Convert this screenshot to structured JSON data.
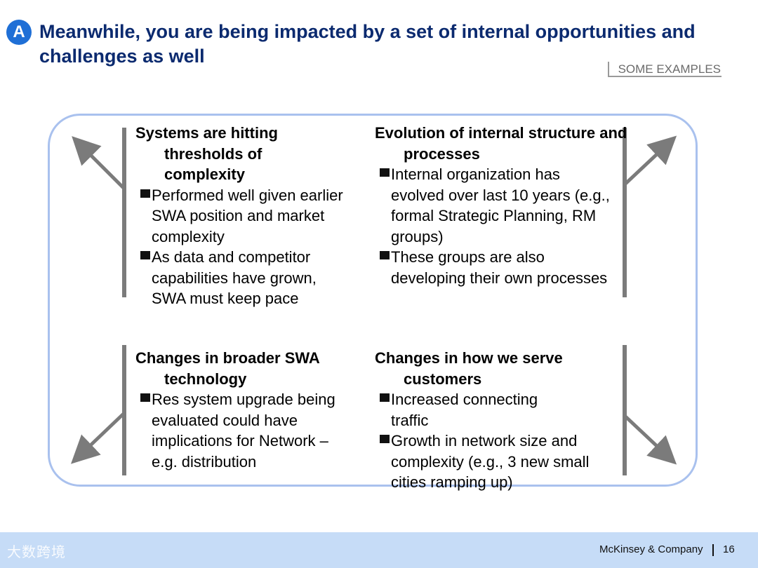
{
  "header": {
    "badge": "A",
    "title": "Meanwhile, you are being impacted by a set of internal opportunities and challenges as well",
    "tag": "SOME EXAMPLES"
  },
  "quadrants": {
    "top_left": {
      "title": "Systems are hitting thresholds of complexity",
      "bullets": [
        "Performed well given earlier SWA position and market complexity",
        "As data and competitor capabilities have grown, SWA must keep pace"
      ]
    },
    "top_right": {
      "title": "Evolution of internal structure and processes",
      "bullets": [
        "Internal organization has evolved over last 10 years (e.g., formal Strategic Planning, RM groups)",
        "These groups are also developing their own processes"
      ]
    },
    "bottom_left": {
      "title": "Changes in broader SWA technology",
      "bullets": [
        "Res system upgrade being evaluated could have implications for Network – e.g. distribution"
      ]
    },
    "bottom_right": {
      "title": "Changes in how we serve customers",
      "bullets": [
        "Increased connecting traffic",
        "Growth in network size and complexity (e.g., 3 new small cities ramping up)"
      ]
    }
  },
  "footer": {
    "company": "McKinsey & Company",
    "page_number": "16",
    "watermark": "大数跨境"
  },
  "colors": {
    "title": "#0b2a6f",
    "badge": "#1f6fd6",
    "frame": "#a9c1ee",
    "arrow": "#7b7b7b",
    "footer": "#c6dcf7"
  }
}
